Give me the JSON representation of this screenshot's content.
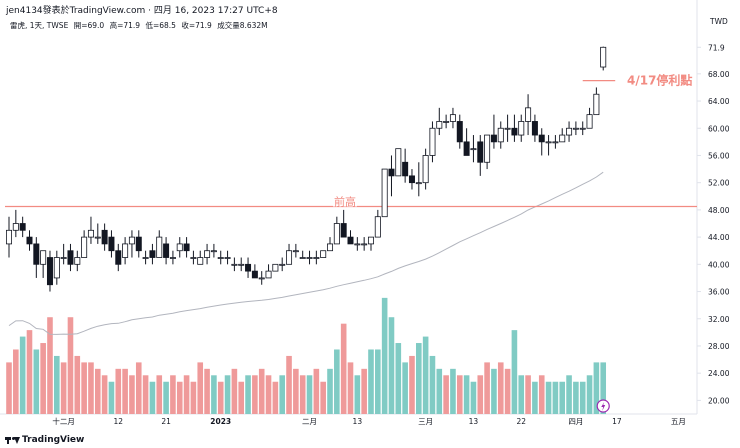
{
  "header": {
    "title": "jen4134發表於TradingView.com",
    "date": "四月 16, 2023 17:27 UTC+8"
  },
  "info": {
    "symbol": "雷虎, 1天, TWSE",
    "open": "開=69.0",
    "high": "高=71.9",
    "low": "低=68.5",
    "close": "收=71.9",
    "volume": "成交量8.632M"
  },
  "currency": "TWD",
  "footer": {
    "brand": "TradingView"
  },
  "colors": {
    "up": "#26a69a",
    "up_candle_fill": "#ffffff",
    "down_candle": "#131722",
    "down_volume": "#ef9a9a",
    "up_volume": "#80cbc4",
    "line_annot": "#f28b82",
    "ma": "#b2b5be",
    "lightning": "#9c27b0"
  },
  "chart_data": {
    "type": "candlestick",
    "y_ticks": [
      20,
      24,
      28,
      32,
      36,
      40,
      44,
      48,
      52,
      56,
      60,
      64,
      68,
      71.9
    ],
    "ylim": [
      18,
      74
    ],
    "x_tick_labels": [
      "十二月",
      "12",
      "21",
      "2023",
      "二月",
      "13",
      "三月",
      "13",
      "22",
      "四月",
      "17",
      "五月"
    ],
    "x_tick_index": [
      8,
      16,
      23,
      31,
      44,
      51,
      61,
      68,
      75,
      83,
      89,
      98
    ],
    "annotations": [
      {
        "type": "hline",
        "value": 48.5,
        "label": "前高"
      },
      {
        "type": "hline_segment",
        "value": 67,
        "label": "4/17停利點"
      }
    ],
    "candles": [
      [
        43,
        47,
        41,
        45
      ],
      [
        45,
        48,
        44,
        46
      ],
      [
        46,
        47,
        44,
        45
      ],
      [
        44,
        45,
        42,
        43
      ],
      [
        43,
        44,
        38,
        40
      ],
      [
        40,
        42,
        38,
        42
      ],
      [
        41,
        42,
        36,
        37
      ],
      [
        38,
        42,
        37,
        41
      ],
      [
        41,
        43,
        40,
        41
      ],
      [
        42,
        43,
        39,
        40
      ],
      [
        40,
        42,
        39,
        41
      ],
      [
        41,
        45,
        41,
        44
      ],
      [
        44,
        47,
        43,
        45
      ],
      [
        44,
        46,
        43,
        44
      ],
      [
        45,
        46,
        42,
        43
      ],
      [
        44,
        45,
        41,
        42
      ],
      [
        42,
        43,
        39,
        40
      ],
      [
        41,
        44,
        40,
        43
      ],
      [
        43,
        45,
        41,
        44
      ],
      [
        44,
        45,
        41,
        42
      ],
      [
        41,
        42,
        40,
        41
      ],
      [
        42,
        43,
        40,
        41
      ],
      [
        41,
        45,
        41,
        44
      ],
      [
        43,
        44,
        40,
        41
      ],
      [
        41,
        42,
        40,
        41
      ],
      [
        42,
        44,
        41,
        43
      ],
      [
        43,
        44,
        41,
        42
      ],
      [
        41,
        42,
        40,
        41
      ],
      [
        40,
        42,
        40,
        41
      ],
      [
        41,
        43,
        40,
        42
      ],
      [
        42,
        43,
        41,
        42
      ],
      [
        41,
        42,
        40,
        41
      ],
      [
        41,
        42,
        40,
        41
      ],
      [
        40,
        41,
        39,
        40
      ],
      [
        40,
        41,
        39,
        40
      ],
      [
        40,
        41,
        38,
        39
      ],
      [
        39,
        40,
        38,
        38
      ],
      [
        38,
        39,
        37,
        38
      ],
      [
        38,
        40,
        38,
        39
      ],
      [
        39,
        40,
        39,
        40
      ],
      [
        40,
        41,
        39,
        40
      ],
      [
        40,
        43,
        40,
        42
      ],
      [
        42,
        43,
        41,
        42
      ],
      [
        41,
        42,
        41,
        41
      ],
      [
        41,
        42,
        40,
        41
      ],
      [
        41,
        42,
        40,
        41
      ],
      [
        41,
        42,
        41,
        42
      ],
      [
        42,
        44,
        42,
        43
      ],
      [
        43,
        47,
        43,
        46
      ],
      [
        46,
        48,
        44,
        44
      ],
      [
        44,
        45,
        43,
        43
      ],
      [
        43,
        44,
        42,
        43
      ],
      [
        43,
        44,
        42,
        43
      ],
      [
        43,
        44,
        42,
        44
      ],
      [
        44,
        48,
        44,
        47
      ],
      [
        47,
        54,
        47,
        54
      ],
      [
        54,
        56,
        50,
        53
      ],
      [
        53,
        57,
        53,
        57
      ],
      [
        55,
        57,
        52,
        53
      ],
      [
        53,
        54,
        51,
        52
      ],
      [
        52,
        55,
        50,
        52
      ],
      [
        52,
        57,
        51,
        56
      ],
      [
        56,
        61,
        55,
        60
      ],
      [
        60,
        63,
        59,
        61
      ],
      [
        61,
        62,
        60,
        61
      ],
      [
        61,
        63,
        60,
        62
      ],
      [
        61,
        62,
        57,
        58
      ],
      [
        58,
        60,
        56,
        56
      ],
      [
        57,
        59,
        55,
        57
      ],
      [
        58,
        59,
        53,
        55
      ],
      [
        55,
        59,
        54,
        59
      ],
      [
        59,
        62,
        57,
        58
      ],
      [
        58,
        61,
        57,
        60
      ],
      [
        60,
        62,
        58,
        60
      ],
      [
        60,
        62,
        58,
        59
      ],
      [
        59,
        62,
        58,
        61
      ],
      [
        61,
        65,
        59,
        63
      ],
      [
        61,
        62,
        58,
        59
      ],
      [
        59,
        60,
        56,
        58
      ],
      [
        58,
        59,
        56,
        58
      ],
      [
        58,
        59,
        57,
        58
      ],
      [
        58,
        60,
        58,
        59
      ],
      [
        59,
        61,
        58,
        60
      ],
      [
        60,
        61,
        59,
        60
      ],
      [
        60,
        61,
        59,
        60
      ],
      [
        60,
        63,
        60,
        62
      ],
      [
        62,
        66,
        62,
        65
      ],
      [
        69,
        72,
        68.5,
        71.9
      ]
    ],
    "volume": [
      [
        22,
        "d"
      ],
      [
        24,
        "d"
      ],
      [
        26,
        "u"
      ],
      [
        27,
        "d"
      ],
      [
        24,
        "u"
      ],
      [
        25,
        "d"
      ],
      [
        29,
        "d"
      ],
      [
        23,
        "u"
      ],
      [
        22,
        "d"
      ],
      [
        29,
        "d"
      ],
      [
        23,
        "d"
      ],
      [
        22,
        "d"
      ],
      [
        22,
        "d"
      ],
      [
        21,
        "d"
      ],
      [
        20,
        "d"
      ],
      [
        19,
        "u"
      ],
      [
        21,
        "d"
      ],
      [
        21,
        "d"
      ],
      [
        20,
        "d"
      ],
      [
        22,
        "d"
      ],
      [
        20,
        "d"
      ],
      [
        19,
        "u"
      ],
      [
        20,
        "d"
      ],
      [
        19,
        "u"
      ],
      [
        20,
        "d"
      ],
      [
        19,
        "d"
      ],
      [
        20,
        "d"
      ],
      [
        19,
        "d"
      ],
      [
        22,
        "d"
      ],
      [
        21,
        "d"
      ],
      [
        20,
        "u"
      ],
      [
        19,
        "d"
      ],
      [
        20,
        "u"
      ],
      [
        21,
        "d"
      ],
      [
        19,
        "d"
      ],
      [
        20,
        "u"
      ],
      [
        20,
        "d"
      ],
      [
        21,
        "d"
      ],
      [
        20,
        "d"
      ],
      [
        19,
        "d"
      ],
      [
        20,
        "u"
      ],
      [
        23,
        "d"
      ],
      [
        21,
        "d"
      ],
      [
        20,
        "d"
      ],
      [
        20,
        "u"
      ],
      [
        21,
        "d"
      ],
      [
        19,
        "d"
      ],
      [
        21,
        "u"
      ],
      [
        24,
        "u"
      ],
      [
        28,
        "d"
      ],
      [
        22,
        "d"
      ],
      [
        20,
        "u"
      ],
      [
        21,
        "d"
      ],
      [
        24,
        "u"
      ],
      [
        24,
        "u"
      ],
      [
        32,
        "u"
      ],
      [
        29,
        "u"
      ],
      [
        25,
        "u"
      ],
      [
        22,
        "u"
      ],
      [
        23,
        "d"
      ],
      [
        25,
        "u"
      ],
      [
        26,
        "u"
      ],
      [
        23,
        "u"
      ],
      [
        21,
        "u"
      ],
      [
        20,
        "d"
      ],
      [
        21,
        "u"
      ],
      [
        20,
        "d"
      ],
      [
        20,
        "u"
      ],
      [
        19,
        "u"
      ],
      [
        20,
        "d"
      ],
      [
        22,
        "d"
      ],
      [
        21,
        "u"
      ],
      [
        22,
        "d"
      ],
      [
        21,
        "d"
      ],
      [
        27,
        "u"
      ],
      [
        20,
        "u"
      ],
      [
        20,
        "d"
      ],
      [
        19,
        "u"
      ],
      [
        20,
        "d"
      ],
      [
        19,
        "u"
      ],
      [
        19,
        "u"
      ],
      [
        19,
        "u"
      ],
      [
        20,
        "u"
      ],
      [
        19,
        "u"
      ],
      [
        19,
        "u"
      ],
      [
        20,
        "u"
      ],
      [
        22,
        "u"
      ],
      [
        22,
        "u"
      ]
    ],
    "volume_ylim": [
      18,
      45
    ]
  }
}
